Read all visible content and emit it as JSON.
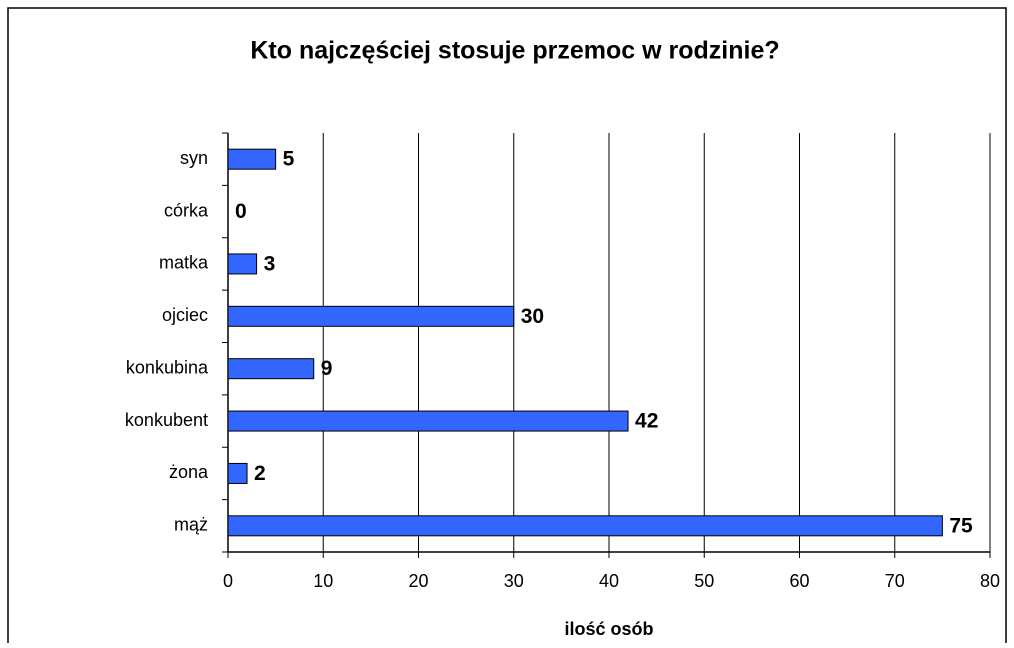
{
  "chart_data": {
    "type": "barh",
    "title": "Kto najczęściej stosuje przemoc w rodzinie?",
    "categories": [
      "syn",
      "córka",
      "matka",
      "ojciec",
      "konkubina",
      "konkubent",
      "żona",
      "mąż"
    ],
    "values": [
      5,
      0,
      3,
      30,
      9,
      42,
      2,
      75
    ],
    "color": "#3366ff",
    "x_label": "ilość osób",
    "xlim": [
      0,
      80
    ],
    "xticks": [
      0,
      10,
      20,
      30,
      40,
      50,
      60,
      70,
      80
    ],
    "grid": true
  }
}
